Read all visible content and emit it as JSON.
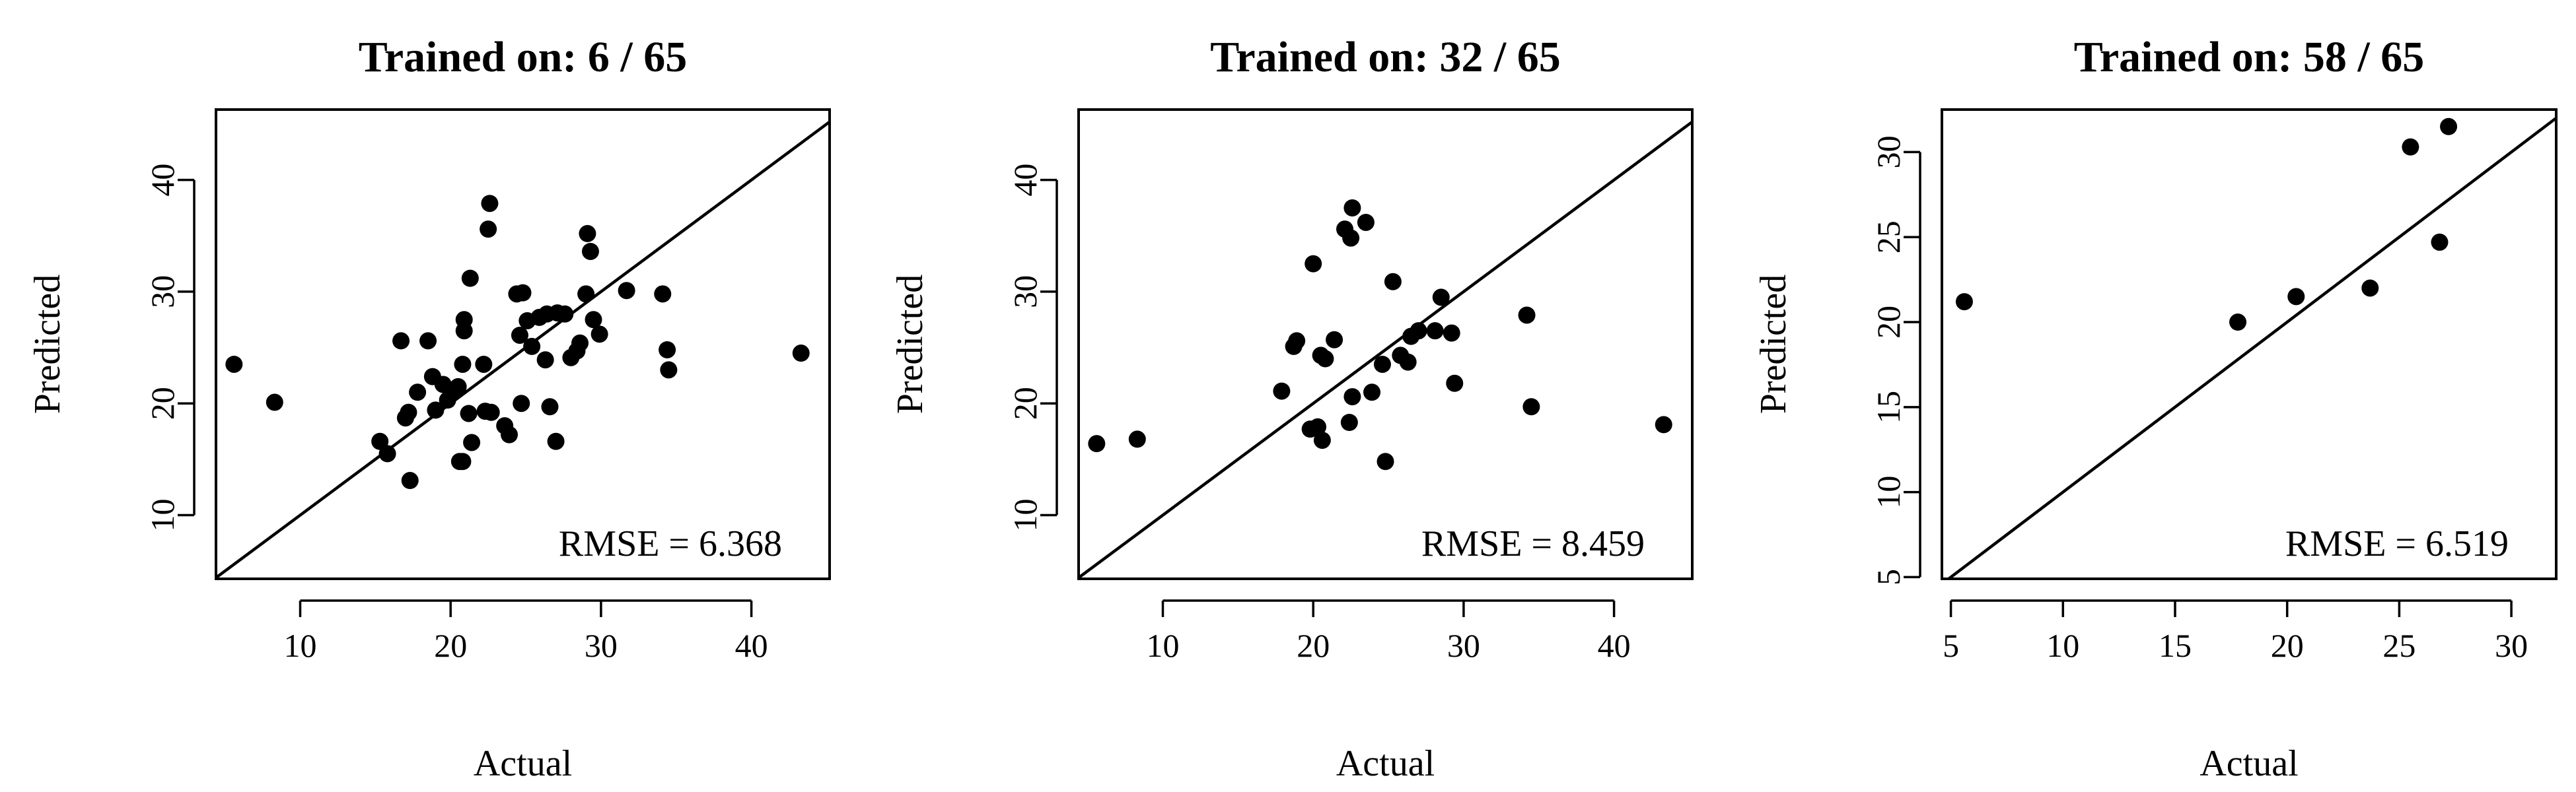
{
  "chart_data": [
    {
      "type": "scatter",
      "title": "Trained on: 6 / 65",
      "xlabel": "Actual",
      "ylabel": "Predicted",
      "xlim": [
        4.4,
        45.2
      ],
      "ylim": [
        4.3,
        46.3
      ],
      "xticks": [
        10,
        20,
        30,
        40
      ],
      "yticks": [
        10,
        20,
        30,
        40
      ],
      "reference_line": "y = x",
      "annotation": "RMSE = 6.368",
      "points": [
        [
          5.6,
          23.5
        ],
        [
          8.3,
          20.1
        ],
        [
          15.3,
          16.6
        ],
        [
          15.8,
          15.5
        ],
        [
          16.7,
          25.6
        ],
        [
          17.0,
          18.7
        ],
        [
          17.2,
          19.2
        ],
        [
          17.3,
          13.1
        ],
        [
          17.8,
          21.0
        ],
        [
          18.5,
          25.6
        ],
        [
          18.8,
          22.4
        ],
        [
          19.0,
          19.4
        ],
        [
          19.5,
          21.7
        ],
        [
          19.8,
          20.3
        ],
        [
          20.3,
          21.2
        ],
        [
          20.5,
          21.5
        ],
        [
          20.6,
          14.8
        ],
        [
          20.8,
          14.8
        ],
        [
          20.8,
          23.5
        ],
        [
          20.9,
          26.5
        ],
        [
          20.9,
          27.5
        ],
        [
          21.2,
          19.1
        ],
        [
          21.3,
          31.2
        ],
        [
          21.4,
          16.5
        ],
        [
          22.2,
          23.5
        ],
        [
          22.3,
          19.3
        ],
        [
          22.5,
          35.6
        ],
        [
          22.6,
          37.9
        ],
        [
          22.7,
          19.2
        ],
        [
          23.6,
          18.0
        ],
        [
          23.9,
          17.2
        ],
        [
          24.4,
          29.8
        ],
        [
          24.6,
          26.1
        ],
        [
          24.7,
          20.0
        ],
        [
          24.8,
          29.9
        ],
        [
          25.1,
          27.4
        ],
        [
          25.4,
          25.1
        ],
        [
          25.9,
          27.7
        ],
        [
          26.3,
          23.9
        ],
        [
          26.4,
          28.0
        ],
        [
          26.6,
          19.7
        ],
        [
          27.0,
          16.6
        ],
        [
          27.1,
          28.1
        ],
        [
          27.6,
          28.0
        ],
        [
          28.0,
          24.1
        ],
        [
          28.4,
          24.7
        ],
        [
          28.6,
          25.4
        ],
        [
          29.0,
          29.8
        ],
        [
          29.1,
          35.2
        ],
        [
          29.3,
          33.6
        ],
        [
          29.5,
          27.5
        ],
        [
          29.9,
          26.2
        ],
        [
          31.7,
          30.1
        ],
        [
          34.1,
          29.8
        ],
        [
          34.4,
          24.8
        ],
        [
          34.5,
          23.0
        ],
        [
          43.3,
          24.5
        ]
      ]
    },
    {
      "type": "scatter",
      "title": "Trained on: 32 / 65",
      "xlabel": "Actual",
      "ylabel": "Predicted",
      "xlim": [
        4.4,
        45.2
      ],
      "ylim": [
        4.3,
        46.3
      ],
      "xticks": [
        10,
        20,
        30,
        40
      ],
      "yticks": [
        10,
        20,
        30,
        40
      ],
      "reference_line": "y = x",
      "annotation": "RMSE = 8.459",
      "points": [
        [
          5.6,
          16.4
        ],
        [
          8.3,
          16.8
        ],
        [
          17.9,
          21.1
        ],
        [
          18.7,
          25.1
        ],
        [
          18.9,
          25.6
        ],
        [
          19.8,
          17.7
        ],
        [
          20.0,
          32.5
        ],
        [
          20.3,
          17.9
        ],
        [
          20.5,
          24.3
        ],
        [
          20.6,
          16.7
        ],
        [
          20.8,
          24.0
        ],
        [
          21.4,
          25.7
        ],
        [
          22.1,
          35.6
        ],
        [
          22.4,
          18.3
        ],
        [
          22.5,
          34.8
        ],
        [
          22.6,
          37.5
        ],
        [
          22.6,
          20.6
        ],
        [
          23.5,
          36.2
        ],
        [
          23.9,
          21.0
        ],
        [
          24.6,
          23.5
        ],
        [
          24.8,
          14.8
        ],
        [
          25.3,
          30.9
        ],
        [
          25.8,
          24.3
        ],
        [
          26.3,
          23.7
        ],
        [
          26.5,
          26.0
        ],
        [
          27.0,
          26.5
        ],
        [
          28.1,
          26.5
        ],
        [
          28.5,
          29.5
        ],
        [
          29.2,
          26.3
        ],
        [
          29.4,
          21.8
        ],
        [
          34.2,
          27.9
        ],
        [
          34.5,
          19.7
        ],
        [
          43.3,
          18.1
        ]
      ]
    },
    {
      "type": "scatter",
      "title": "Trained on: 58 / 65",
      "xlabel": "Actual",
      "ylabel": "Predicted",
      "xlim": [
        4.6,
        32.0
      ],
      "ylim": [
        4.9,
        32.5
      ],
      "xticks": [
        5,
        10,
        15,
        20,
        25,
        30
      ],
      "yticks": [
        5,
        10,
        15,
        20,
        25,
        30
      ],
      "reference_line": "y = x",
      "annotation": "RMSE = 6.519",
      "points": [
        [
          5.6,
          21.2
        ],
        [
          17.8,
          20.0
        ],
        [
          20.4,
          21.5
        ],
        [
          23.7,
          22.0
        ],
        [
          25.5,
          30.3
        ],
        [
          26.8,
          24.7
        ],
        [
          27.2,
          31.5
        ]
      ]
    }
  ]
}
